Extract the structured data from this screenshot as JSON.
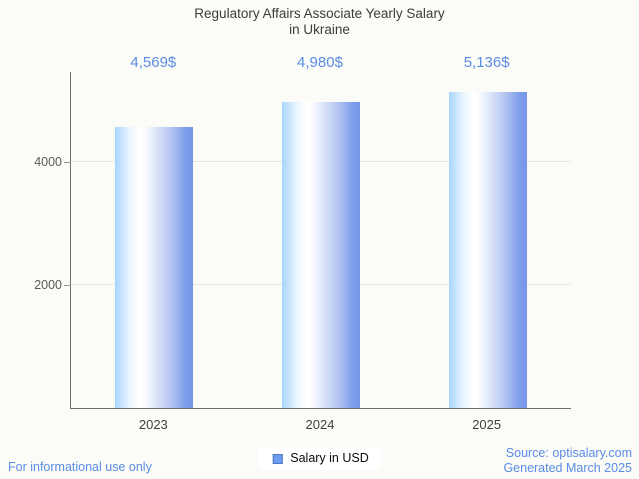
{
  "title": {
    "line1": "Regulatory Affairs Associate Yearly Salary",
    "line2": "in Ukraine"
  },
  "chart_data": {
    "type": "bar",
    "title": "Regulatory Affairs Associate Yearly Salary in Ukraine",
    "categories": [
      "2023",
      "2024",
      "2025"
    ],
    "series": [
      {
        "name": "Salary in USD",
        "values": [
          4569,
          4980,
          5136
        ],
        "value_labels": [
          "4,569$",
          "4,980$",
          "5,136$"
        ]
      }
    ],
    "xlabel": "",
    "ylabel": "",
    "ylim": [
      0,
      5460
    ],
    "yticks": [
      2000,
      4000
    ],
    "grid": true,
    "legend_position": "bottom",
    "bar_gradient": [
      "#a8d4fd",
      "#ffffff",
      "#7496e8"
    ]
  },
  "legend": {
    "label": "Salary in USD"
  },
  "footer": {
    "disclaimer": "For informational use only",
    "source": "Source: optisalary.com",
    "generated": "Generated March 2025"
  },
  "colors": {
    "background": "#fbfbf8",
    "title_text": "#3c3c3c",
    "accent_blue": "#5a8de4",
    "axis_line": "#6f6f6f",
    "gridline": "#e5e5e5",
    "legend_marker": "#6c9ced",
    "legend_marker_border": "#4b7ac2"
  }
}
